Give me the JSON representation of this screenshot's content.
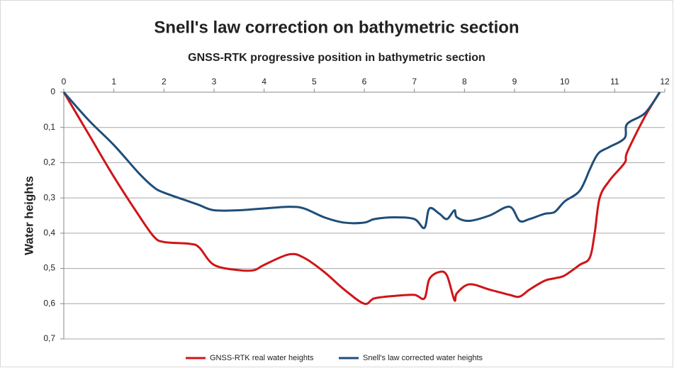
{
  "chart_data": {
    "type": "line",
    "title": "Snell's law correction on bathymetric section",
    "subtitle": "GNSS-RTK progressive position in bathymetric section",
    "y_label": "Water heights",
    "x": [
      0,
      0.5,
      1,
      1.5,
      1.8,
      2,
      2.5,
      2.7,
      3,
      3.5,
      3.8,
      4,
      4.5,
      4.8,
      5.2,
      5.6,
      6,
      6.2,
      6.6,
      7,
      7.2,
      7.3,
      7.5,
      7.65,
      7.8,
      7.85,
      8.1,
      8.5,
      8.9,
      9.1,
      9.3,
      9.6,
      9.8,
      10,
      10.3,
      10.5,
      10.6,
      10.7,
      10.9,
      11.2,
      11.25,
      11.6,
      11.9
    ],
    "series": [
      {
        "name": "GNSS-RTK real water heights",
        "color": "#d01418",
        "values": [
          0,
          0.12,
          0.24,
          0.35,
          0.41,
          0.425,
          0.43,
          0.44,
          0.49,
          0.505,
          0.505,
          0.49,
          0.46,
          0.47,
          0.51,
          0.56,
          0.6,
          0.585,
          0.578,
          0.575,
          0.585,
          0.53,
          0.51,
          0.52,
          0.59,
          0.57,
          0.545,
          0.56,
          0.575,
          0.58,
          0.56,
          0.535,
          0.528,
          0.52,
          0.49,
          0.47,
          0.4,
          0.3,
          0.25,
          0.2,
          0.17,
          0.07,
          0
        ]
      },
      {
        "name": "Snell's law corrected water heights",
        "color": "#1f4e79",
        "values": [
          0,
          0.08,
          0.15,
          0.23,
          0.27,
          0.285,
          0.31,
          0.32,
          0.335,
          0.335,
          0.332,
          0.33,
          0.325,
          0.33,
          0.355,
          0.37,
          0.37,
          0.36,
          0.355,
          0.36,
          0.385,
          0.33,
          0.345,
          0.36,
          0.335,
          0.355,
          0.365,
          0.35,
          0.325,
          0.365,
          0.36,
          0.345,
          0.34,
          0.31,
          0.28,
          0.22,
          0.19,
          0.17,
          0.155,
          0.13,
          0.09,
          0.06,
          0
        ]
      }
    ],
    "xlim": [
      0,
      12
    ],
    "xticks": [
      0,
      1,
      2,
      3,
      4,
      5,
      6,
      7,
      8,
      9,
      10,
      11,
      12
    ],
    "ylim": [
      0,
      0.7
    ],
    "y_inverted": true,
    "yticks": [
      0,
      {
        "value": 0.1,
        "label": "0,1"
      },
      {
        "value": 0.2,
        "label": "0,2"
      },
      {
        "value": 0.3,
        "label": "0,3"
      },
      {
        "value": 0.4,
        "label": "0,4"
      },
      {
        "value": 0.5,
        "label": "0,5"
      },
      {
        "value": 0.6,
        "label": "0,6"
      },
      {
        "value": 0.7,
        "label": "0,7"
      }
    ],
    "grid": true,
    "legend": "bottom"
  }
}
